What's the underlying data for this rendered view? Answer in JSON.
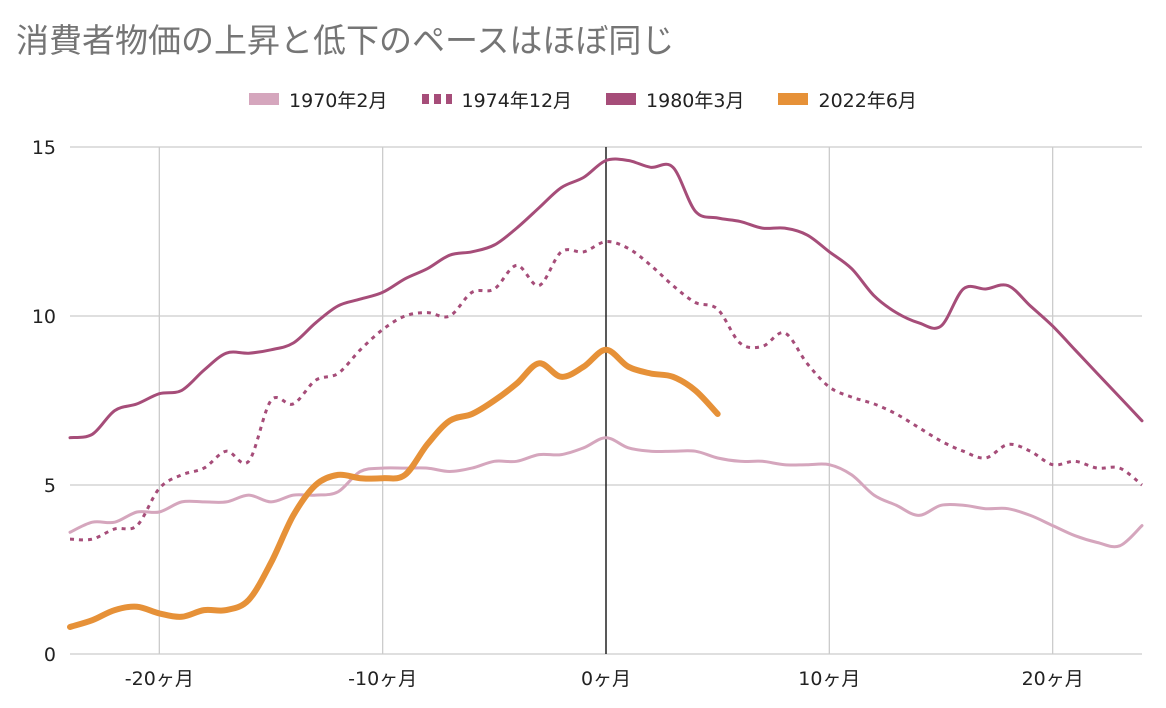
{
  "chart_data": {
    "type": "line",
    "title": "消費者物価の上昇と低下のペースはほぼ同じ",
    "xlabel": "",
    "ylabel": "",
    "xlim": [
      -24,
      24
    ],
    "ylim": [
      0,
      15
    ],
    "x_ticks": [
      -20,
      -10,
      0,
      10,
      20
    ],
    "x_tick_labels": [
      "-20ヶ月",
      "-10ヶ月",
      "0ヶ月",
      "10ヶ月",
      "20ヶ月"
    ],
    "y_ticks": [
      0,
      5,
      10,
      15
    ],
    "y_tick_labels": [
      "0",
      "5",
      "10",
      "15"
    ],
    "grid": true,
    "legend_position": "top",
    "series": [
      {
        "name": "1970年2月",
        "color": "#d5a6bd",
        "style": "solid",
        "x": [
          -24,
          -23,
          -22,
          -21,
          -20,
          -19,
          -18,
          -17,
          -16,
          -15,
          -14,
          -13,
          -12,
          -11,
          -10,
          -9,
          -8,
          -7,
          -6,
          -5,
          -4,
          -3,
          -2,
          -1,
          0,
          1,
          2,
          3,
          4,
          5,
          6,
          7,
          8,
          9,
          10,
          11,
          12,
          13,
          14,
          15,
          16,
          17,
          18,
          19,
          20,
          21,
          22,
          23,
          24
        ],
        "values": [
          3.6,
          3.9,
          3.9,
          4.2,
          4.2,
          4.5,
          4.5,
          4.5,
          4.7,
          4.5,
          4.7,
          4.7,
          4.8,
          5.4,
          5.5,
          5.5,
          5.5,
          5.4,
          5.5,
          5.7,
          5.7,
          5.9,
          5.9,
          6.1,
          6.4,
          6.1,
          6.0,
          6.0,
          6.0,
          5.8,
          5.7,
          5.7,
          5.6,
          5.6,
          5.6,
          5.3,
          4.7,
          4.4,
          4.1,
          4.4,
          4.4,
          4.3,
          4.3,
          4.1,
          3.8,
          3.5,
          3.3,
          3.2,
          3.8
        ]
      },
      {
        "name": "1974年12月",
        "color": "#a64d79",
        "style": "dotted",
        "x": [
          -24,
          -23,
          -22,
          -21,
          -20,
          -19,
          -18,
          -17,
          -16,
          -15,
          -14,
          -13,
          -12,
          -11,
          -10,
          -9,
          -8,
          -7,
          -6,
          -5,
          -4,
          -3,
          -2,
          -1,
          0,
          1,
          2,
          3,
          4,
          5,
          6,
          7,
          8,
          9,
          10,
          11,
          12,
          13,
          14,
          15,
          16,
          17,
          18,
          19,
          20,
          21,
          22,
          23,
          24
        ],
        "values": [
          3.4,
          3.4,
          3.7,
          3.8,
          4.9,
          5.3,
          5.5,
          6.0,
          5.7,
          7.5,
          7.4,
          8.1,
          8.3,
          9.0,
          9.6,
          10.0,
          10.1,
          10.0,
          10.7,
          10.8,
          11.5,
          10.9,
          11.9,
          11.9,
          12.2,
          12.0,
          11.5,
          10.9,
          10.4,
          10.2,
          9.2,
          9.1,
          9.5,
          8.6,
          7.9,
          7.6,
          7.4,
          7.1,
          6.7,
          6.3,
          6.0,
          5.8,
          6.2,
          6.0,
          5.6,
          5.7,
          5.5,
          5.5,
          5.0
        ]
      },
      {
        "name": "1980年3月",
        "color": "#a64d79",
        "style": "solid",
        "x": [
          -24,
          -23,
          -22,
          -21,
          -20,
          -19,
          -18,
          -17,
          -16,
          -15,
          -14,
          -13,
          -12,
          -11,
          -10,
          -9,
          -8,
          -7,
          -6,
          -5,
          -4,
          -3,
          -2,
          -1,
          0,
          1,
          2,
          3,
          4,
          5,
          6,
          7,
          8,
          9,
          10,
          11,
          12,
          13,
          14,
          15,
          16,
          17,
          18,
          19,
          20,
          21,
          22,
          23,
          24
        ],
        "values": [
          6.4,
          6.5,
          7.2,
          7.4,
          7.7,
          7.8,
          8.4,
          8.9,
          8.9,
          9.0,
          9.2,
          9.8,
          10.3,
          10.5,
          10.7,
          11.1,
          11.4,
          11.8,
          11.9,
          12.1,
          12.6,
          13.2,
          13.8,
          14.1,
          14.6,
          14.6,
          14.4,
          14.4,
          13.1,
          12.9,
          12.8,
          12.6,
          12.6,
          12.4,
          11.9,
          11.4,
          10.6,
          10.1,
          9.8,
          9.7,
          10.8,
          10.8,
          10.9,
          10.3,
          9.7,
          9.0,
          8.3,
          7.6,
          6.9
        ]
      },
      {
        "name": "2022年6月",
        "color": "#e69138",
        "style": "bold",
        "x": [
          -24,
          -23,
          -22,
          -21,
          -20,
          -19,
          -18,
          -17,
          -16,
          -15,
          -14,
          -13,
          -12,
          -11,
          -10,
          -9,
          -8,
          -7,
          -6,
          -5,
          -4,
          -3,
          -2,
          -1,
          0,
          1,
          2,
          3,
          4,
          5
        ],
        "values": [
          0.8,
          1.0,
          1.3,
          1.4,
          1.2,
          1.1,
          1.3,
          1.3,
          1.6,
          2.7,
          4.1,
          5.0,
          5.3,
          5.2,
          5.2,
          5.3,
          6.2,
          6.9,
          7.1,
          7.5,
          8.0,
          8.6,
          8.2,
          8.5,
          9.0,
          8.5,
          8.3,
          8.2,
          7.8,
          7.1
        ]
      }
    ]
  }
}
